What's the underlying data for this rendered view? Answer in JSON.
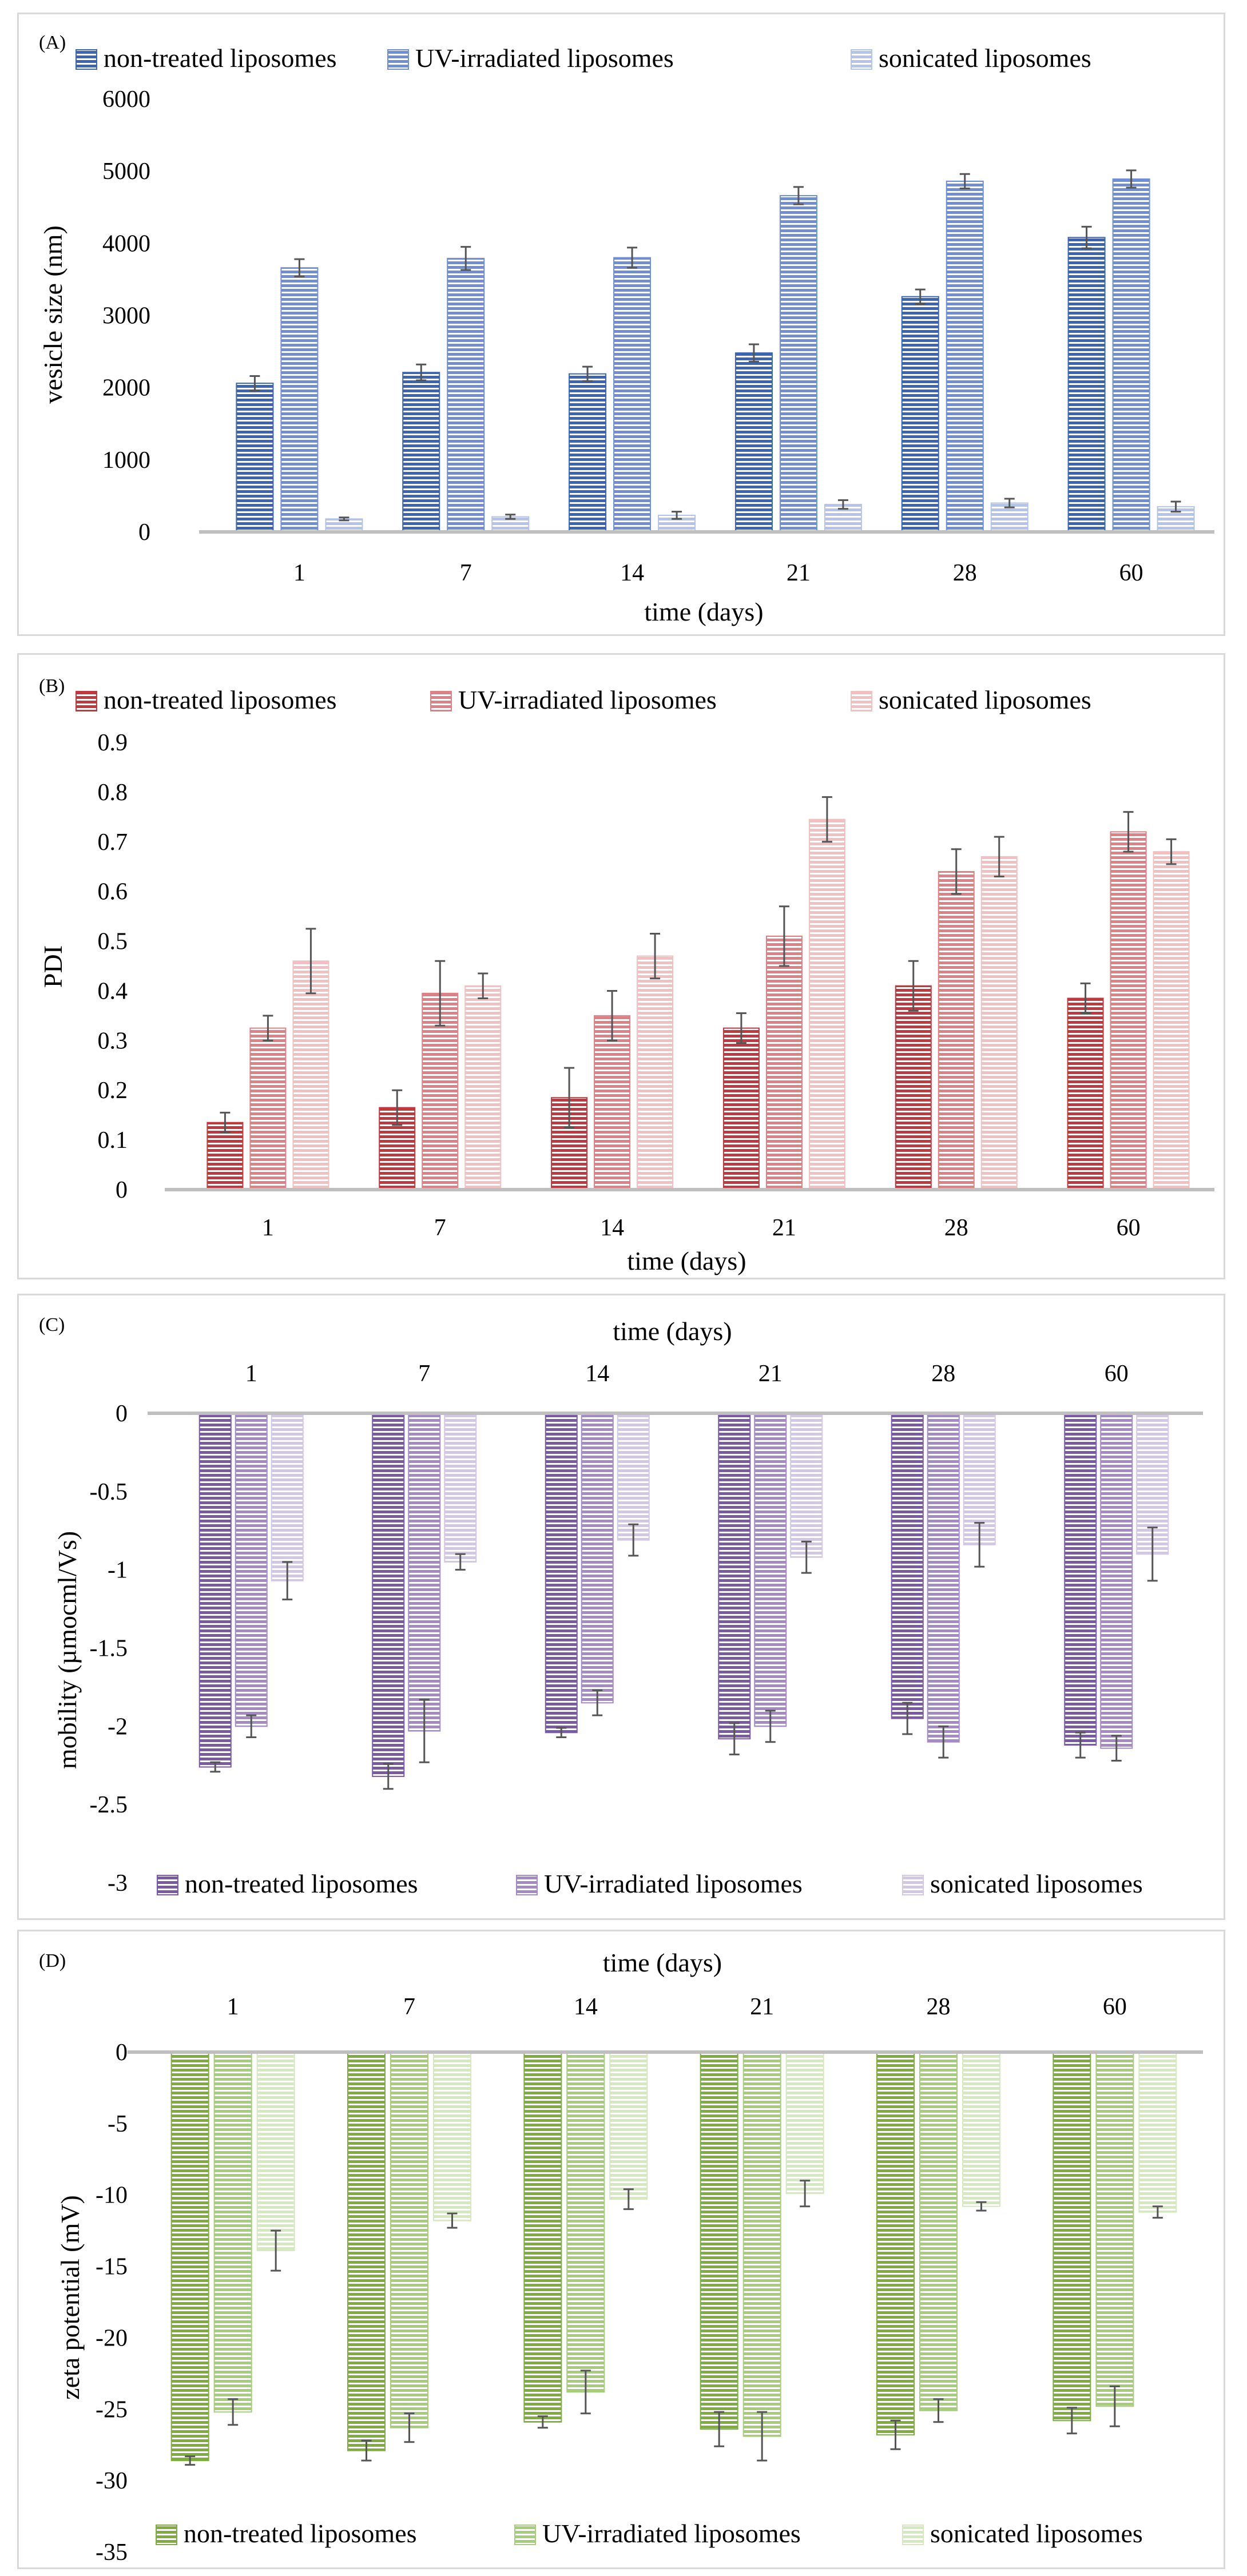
{
  "colors": {
    "A": [
      "#3a65b3",
      "#6d8fd6",
      "#b4c4e8"
    ],
    "B": [
      "#c0393e",
      "#dc8185",
      "#f0c0c2"
    ],
    "C": [
      "#7a5aa6",
      "#a58bc5",
      "#d3c8e3"
    ],
    "D": [
      "#7fad3e",
      "#a8cd7a",
      "#d6e8bd"
    ]
  },
  "chart_data": [
    {
      "panel_label": "(A)",
      "type": "bar",
      "title": "",
      "xlabel": "time (days)",
      "ylabel": "vesicle size (nm)",
      "categories": [
        "1",
        "7",
        "14",
        "21",
        "28",
        "60"
      ],
      "ylim": [
        0,
        6000
      ],
      "yticks": [
        0,
        1000,
        2000,
        3000,
        4000,
        5000,
        6000
      ],
      "legend_position": "top",
      "series": [
        {
          "name": "non-treated liposomes",
          "values": [
            2060,
            2210,
            2190,
            2480,
            3260,
            4080
          ],
          "errors": [
            100,
            110,
            100,
            120,
            100,
            150
          ]
        },
        {
          "name": "UV-irradiated liposomes",
          "values": [
            3660,
            3790,
            3800,
            4660,
            4860,
            4890
          ],
          "errors": [
            120,
            160,
            140,
            120,
            100,
            120
          ]
        },
        {
          "name": "sonicated liposomes",
          "values": [
            180,
            210,
            230,
            380,
            400,
            350
          ],
          "errors": [
            20,
            30,
            50,
            60,
            60,
            70
          ]
        }
      ]
    },
    {
      "panel_label": "(B)",
      "type": "bar",
      "title": "",
      "xlabel": "time (days)",
      "ylabel": "PDI",
      "categories": [
        "1",
        "7",
        "14",
        "21",
        "28",
        "60"
      ],
      "ylim": [
        0,
        0.9
      ],
      "yticks": [
        0,
        0.1,
        0.2,
        0.3,
        0.4,
        0.5,
        0.6,
        0.7,
        0.8,
        0.9
      ],
      "legend_position": "top",
      "series": [
        {
          "name": "non-treated liposomes",
          "values": [
            0.135,
            0.165,
            0.185,
            0.325,
            0.41,
            0.385
          ],
          "errors": [
            0.02,
            0.035,
            0.06,
            0.03,
            0.05,
            0.03
          ]
        },
        {
          "name": "UV-irradiated liposomes",
          "values": [
            0.325,
            0.395,
            0.35,
            0.51,
            0.64,
            0.72
          ],
          "errors": [
            0.025,
            0.065,
            0.05,
            0.06,
            0.045,
            0.04
          ]
        },
        {
          "name": "sonicated liposomes",
          "values": [
            0.46,
            0.41,
            0.47,
            0.745,
            0.67,
            0.68
          ],
          "errors": [
            0.065,
            0.025,
            0.045,
            0.045,
            0.04,
            0.025
          ]
        }
      ]
    },
    {
      "panel_label": "(C)",
      "type": "bar",
      "title": "",
      "xlabel": "time (days)",
      "ylabel": "mobility (µmocml/Vs)",
      "categories": [
        "1",
        "7",
        "14",
        "21",
        "28",
        "60"
      ],
      "ylim": [
        -3,
        0
      ],
      "yticks": [
        0,
        -0.5,
        -1,
        -1.5,
        -2,
        -2.5,
        -3
      ],
      "legend_position": "bottom",
      "series": [
        {
          "name": "non-treated liposomes",
          "values": [
            -2.26,
            -2.32,
            -2.04,
            -2.08,
            -1.95,
            -2.12
          ],
          "errors": [
            0.03,
            0.08,
            0.03,
            0.1,
            0.1,
            0.08
          ]
        },
        {
          "name": "UV-irradiated liposomes",
          "values": [
            -2.0,
            -2.03,
            -1.85,
            -2.0,
            -2.1,
            -2.14
          ],
          "errors": [
            0.07,
            0.2,
            0.08,
            0.1,
            0.1,
            0.08
          ]
        },
        {
          "name": "sonicated liposomes",
          "values": [
            -1.07,
            -0.95,
            -0.81,
            -0.92,
            -0.84,
            -0.9
          ],
          "errors": [
            0.12,
            0.05,
            0.1,
            0.1,
            0.14,
            0.17
          ]
        }
      ]
    },
    {
      "panel_label": "(D)",
      "type": "bar",
      "title": "",
      "xlabel": "time (days)",
      "ylabel": "zeta potential (mV)",
      "categories": [
        "1",
        "7",
        "14",
        "21",
        "28",
        "60"
      ],
      "ylim": [
        -35,
        0
      ],
      "yticks": [
        0,
        -5,
        -10,
        -15,
        -20,
        -25,
        -30,
        -35
      ],
      "legend_position": "bottom",
      "series": [
        {
          "name": "non-treated liposomes",
          "values": [
            -28.6,
            -27.9,
            -25.9,
            -26.4,
            -26.8,
            -25.8
          ],
          "errors": [
            0.3,
            0.7,
            0.4,
            1.2,
            1.0,
            0.9
          ]
        },
        {
          "name": "UV-irradiated liposomes",
          "values": [
            -25.2,
            -26.3,
            -23.8,
            -26.9,
            -25.1,
            -24.8
          ],
          "errors": [
            0.9,
            1.0,
            1.5,
            1.7,
            0.8,
            1.4
          ]
        },
        {
          "name": "sonicated liposomes",
          "values": [
            -13.9,
            -11.8,
            -10.3,
            -9.9,
            -10.8,
            -11.2
          ],
          "errors": [
            1.4,
            0.5,
            0.7,
            0.9,
            0.3,
            0.4
          ]
        }
      ]
    }
  ]
}
